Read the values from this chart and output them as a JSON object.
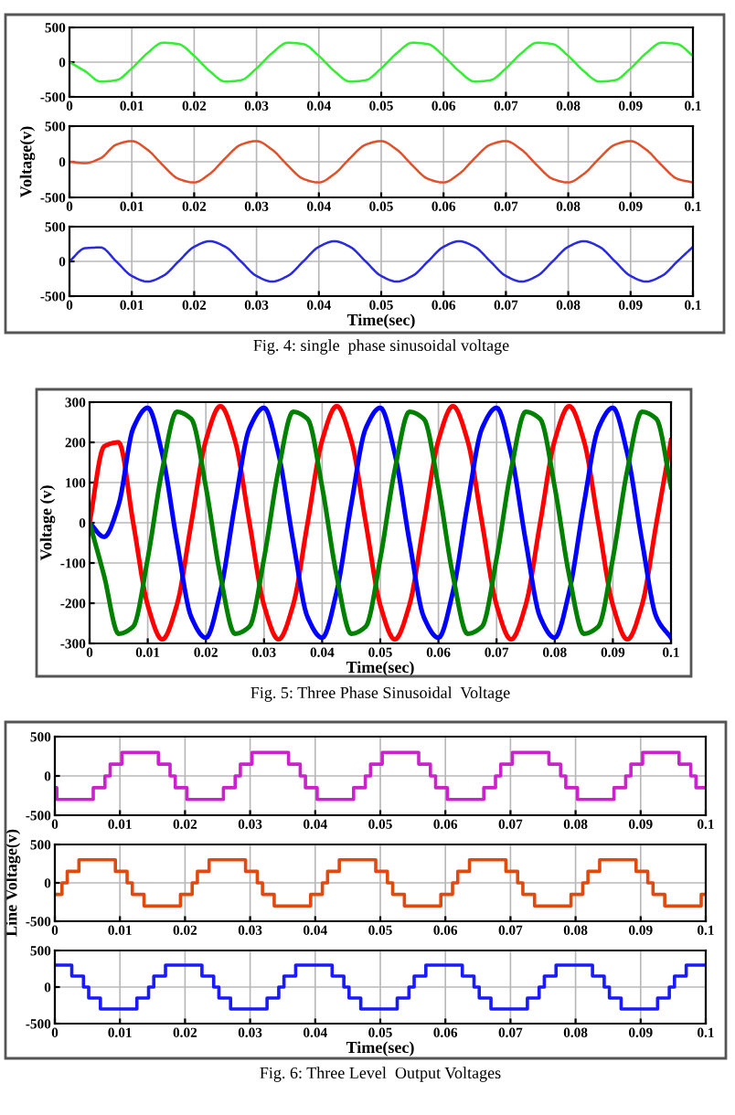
{
  "chart_data": [
    {
      "type": "line",
      "x": [
        0,
        0.0025,
        0.005,
        0.0075,
        0.01,
        0.0125,
        0.015,
        0.0175,
        0.02,
        0.0225,
        0.025,
        0.0275,
        0.03,
        0.0325,
        0.035,
        0.0375,
        0.04,
        0.0425,
        0.045,
        0.0475,
        0.05,
        0.0525,
        0.055,
        0.0575,
        0.06,
        0.0625,
        0.065,
        0.0675,
        0.07,
        0.0725,
        0.075,
        0.0775,
        0.08,
        0.0825,
        0.085,
        0.0875,
        0.09,
        0.0925,
        0.095,
        0.0975,
        0.1
      ],
      "series": [
        {
          "color": "#33ee33",
          "values": [
            0,
            -130,
            -280,
            -260,
            -90,
            130,
            280,
            260,
            90,
            -130,
            -280,
            -260,
            -90,
            130,
            280,
            260,
            90,
            -130,
            -280,
            -260,
            -90,
            130,
            280,
            260,
            90,
            -130,
            -280,
            -260,
            -90,
            130,
            280,
            260,
            90,
            -130,
            -280,
            -260,
            -90,
            130,
            280,
            260,
            90
          ]
        }
      ],
      "xlim": [
        0,
        0.1
      ],
      "ylim": [
        -500,
        500
      ],
      "xticks": [
        0,
        0.01,
        0.02,
        0.03,
        0.04,
        0.05,
        0.06,
        0.07,
        0.08,
        0.09,
        0.1
      ],
      "yticks": [
        -500,
        0,
        500
      ],
      "grid": true
    },
    {
      "type": "line",
      "x": [
        0,
        0.0025,
        0.005,
        0.0075,
        0.01,
        0.0125,
        0.015,
        0.0175,
        0.02,
        0.0225,
        0.025,
        0.0275,
        0.03,
        0.0325,
        0.035,
        0.0375,
        0.04,
        0.0425,
        0.045,
        0.0475,
        0.05,
        0.0525,
        0.055,
        0.0575,
        0.06,
        0.0625,
        0.065,
        0.0675,
        0.07,
        0.0725,
        0.075,
        0.0775,
        0.08,
        0.0825,
        0.085,
        0.0875,
        0.09,
        0.0925,
        0.095,
        0.0975,
        0.1
      ],
      "series": [
        {
          "color": "#e0502a",
          "values": [
            0,
            -20,
            50,
            240,
            290,
            170,
            -50,
            -240,
            -290,
            -170,
            50,
            240,
            290,
            170,
            -50,
            -240,
            -290,
            -170,
            50,
            240,
            290,
            170,
            -50,
            -240,
            -290,
            -170,
            50,
            240,
            290,
            170,
            -50,
            -240,
            -290,
            -170,
            50,
            240,
            290,
            170,
            -50,
            -240,
            -290
          ]
        }
      ],
      "xlim": [
        0,
        0.1
      ],
      "ylim": [
        -500,
        500
      ],
      "xticks": [
        0,
        0.01,
        0.02,
        0.03,
        0.04,
        0.05,
        0.06,
        0.07,
        0.08,
        0.09,
        0.1
      ],
      "yticks": [
        -500,
        0,
        500
      ],
      "grid": true,
      "ylabel": "Voltage(v)"
    },
    {
      "type": "line",
      "x": [
        0,
        0.0025,
        0.005,
        0.0075,
        0.01,
        0.0125,
        0.015,
        0.0175,
        0.02,
        0.0225,
        0.025,
        0.0275,
        0.03,
        0.0325,
        0.035,
        0.0375,
        0.04,
        0.0425,
        0.045,
        0.0475,
        0.05,
        0.0525,
        0.055,
        0.0575,
        0.06,
        0.0625,
        0.065,
        0.0675,
        0.07,
        0.0725,
        0.075,
        0.0775,
        0.08,
        0.0825,
        0.085,
        0.0875,
        0.09,
        0.0925,
        0.095,
        0.0975,
        0.1
      ],
      "series": [
        {
          "color": "#2a2ae0",
          "values": [
            0,
            190,
            200,
            0,
            -210,
            -290,
            -210,
            0,
            210,
            290,
            210,
            0,
            -210,
            -290,
            -210,
            0,
            210,
            290,
            210,
            0,
            -210,
            -290,
            -210,
            0,
            210,
            290,
            210,
            0,
            -210,
            -290,
            -210,
            0,
            210,
            290,
            210,
            0,
            -210,
            -290,
            -210,
            0,
            210
          ]
        }
      ],
      "xlim": [
        0,
        0.1
      ],
      "ylim": [
        -500,
        500
      ],
      "xticks": [
        0,
        0.01,
        0.02,
        0.03,
        0.04,
        0.05,
        0.06,
        0.07,
        0.08,
        0.09,
        0.1
      ],
      "yticks": [
        -500,
        0,
        500
      ],
      "grid": true,
      "xlabel": "Time(sec)",
      "annotations": [
        "Fig. 4: single  phase sinusoidal voltage"
      ]
    },
    {
      "type": "line",
      "x": [
        0,
        0.0025,
        0.005,
        0.0075,
        0.01,
        0.0125,
        0.015,
        0.0175,
        0.02,
        0.0225,
        0.025,
        0.0275,
        0.03,
        0.0325,
        0.035,
        0.0375,
        0.04,
        0.0425,
        0.045,
        0.0475,
        0.05,
        0.0525,
        0.055,
        0.0575,
        0.06,
        0.0625,
        0.065,
        0.0675,
        0.07,
        0.0725,
        0.075,
        0.0775,
        0.08,
        0.0825,
        0.085,
        0.0875,
        0.09,
        0.0925,
        0.095,
        0.0975,
        0.1
      ],
      "series": [
        {
          "color": "#ff0000",
          "values": [
            0,
            190,
            200,
            0,
            -205,
            -290,
            -205,
            0,
            205,
            290,
            205,
            0,
            -205,
            -290,
            -205,
            0,
            205,
            290,
            205,
            0,
            -205,
            -290,
            -205,
            0,
            205,
            290,
            205,
            0,
            -205,
            -290,
            -205,
            0,
            205,
            290,
            205,
            0,
            -205,
            -290,
            -205,
            0,
            205
          ]
        },
        {
          "color": "#0000ff",
          "values": [
            0,
            -35,
            45,
            235,
            286,
            171,
            -45,
            -235,
            -286,
            -171,
            45,
            235,
            286,
            171,
            -45,
            -235,
            -286,
            -171,
            45,
            235,
            286,
            171,
            -45,
            -235,
            -286,
            -171,
            45,
            235,
            286,
            171,
            -45,
            -235,
            -286,
            -171,
            45,
            235,
            286,
            171,
            -45,
            -235,
            -286
          ]
        },
        {
          "color": "#008000",
          "values": [
            0,
            -132,
            -276,
            -258,
            -89,
            132,
            276,
            258,
            89,
            -132,
            -276,
            -258,
            -89,
            132,
            276,
            258,
            89,
            -132,
            -276,
            -258,
            -89,
            132,
            276,
            258,
            89,
            -132,
            -276,
            -258,
            -89,
            132,
            276,
            258,
            89,
            -132,
            -276,
            -258,
            -89,
            132,
            276,
            258,
            89
          ]
        }
      ],
      "xlim": [
        0,
        0.1
      ],
      "ylim": [
        -300,
        300
      ],
      "xticks": [
        0,
        0.01,
        0.02,
        0.03,
        0.04,
        0.05,
        0.06,
        0.07,
        0.08,
        0.09,
        0.1
      ],
      "yticks": [
        -300,
        -200,
        -100,
        0,
        100,
        200,
        300
      ],
      "grid": true,
      "xlabel": "Time(sec)",
      "ylabel": "Voltage (v)",
      "annotations": [
        "Fig. 5: Three Phase Sinusoidal  Voltage"
      ]
    },
    {
      "type": "step",
      "x": [
        0,
        0.0003,
        0.0059,
        0.0077,
        0.0085,
        0.0103,
        0.0159,
        0.0177,
        0.0185,
        0.0203,
        0.0259,
        0.0277,
        0.0285,
        0.0303,
        0.0359,
        0.0377,
        0.0385,
        0.0403,
        0.0459,
        0.0477,
        0.0485,
        0.0503,
        0.0559,
        0.0577,
        0.0585,
        0.0603,
        0.0659,
        0.0677,
        0.0685,
        0.0703,
        0.0759,
        0.0777,
        0.0785,
        0.0803,
        0.0859,
        0.0877,
        0.0885,
        0.0903,
        0.0959,
        0.0977,
        0.0985,
        0.1
      ],
      "series": [
        {
          "color": "#cc22cc",
          "values": [
            -150,
            -300,
            -150,
            0,
            150,
            300,
            150,
            0,
            -150,
            -300,
            -150,
            0,
            150,
            300,
            150,
            0,
            -150,
            -300,
            -150,
            0,
            150,
            300,
            150,
            0,
            -150,
            -300,
            -150,
            0,
            150,
            300,
            150,
            0,
            -150,
            -300,
            -150,
            0,
            150,
            300,
            150,
            0,
            -150,
            -150
          ]
        }
      ],
      "xlim": [
        0,
        0.1
      ],
      "ylim": [
        -500,
        500
      ],
      "xticks": [
        0,
        0.01,
        0.02,
        0.03,
        0.04,
        0.05,
        0.06,
        0.07,
        0.08,
        0.09,
        0.1
      ],
      "yticks": [
        -500,
        0,
        500
      ],
      "grid": true
    },
    {
      "type": "step",
      "x": [
        0,
        0.0011,
        0.0019,
        0.0037,
        0.0093,
        0.0111,
        0.0119,
        0.0137,
        0.0193,
        0.0211,
        0.0219,
        0.0237,
        0.0293,
        0.0311,
        0.0319,
        0.0337,
        0.0393,
        0.0411,
        0.0419,
        0.0437,
        0.0493,
        0.0511,
        0.0519,
        0.0537,
        0.0593,
        0.0611,
        0.0619,
        0.0637,
        0.0693,
        0.0711,
        0.0719,
        0.0737,
        0.0793,
        0.0811,
        0.0819,
        0.0837,
        0.0893,
        0.0911,
        0.0919,
        0.0937,
        0.0993,
        0.1
      ],
      "series": [
        {
          "color": "#e04a10",
          "values": [
            -150,
            0,
            150,
            300,
            150,
            0,
            -150,
            -300,
            -150,
            0,
            150,
            300,
            150,
            0,
            -150,
            -300,
            -150,
            0,
            150,
            300,
            150,
            0,
            -150,
            -300,
            -150,
            0,
            150,
            300,
            150,
            0,
            -150,
            -300,
            -150,
            0,
            150,
            300,
            150,
            0,
            -150,
            -300,
            -150,
            -150
          ]
        }
      ],
      "xlim": [
        0,
        0.1
      ],
      "ylim": [
        -500,
        500
      ],
      "xticks": [
        0,
        0.01,
        0.02,
        0.03,
        0.04,
        0.05,
        0.06,
        0.07,
        0.08,
        0.09,
        0.1
      ],
      "yticks": [
        -500,
        0,
        500
      ],
      "grid": true,
      "ylabel": "Line Voltage(v)"
    },
    {
      "type": "step",
      "x": [
        0,
        0.0026,
        0.0044,
        0.0052,
        0.007,
        0.0126,
        0.0144,
        0.0152,
        0.017,
        0.0226,
        0.0244,
        0.0252,
        0.027,
        0.0326,
        0.0344,
        0.0352,
        0.037,
        0.0426,
        0.0444,
        0.0452,
        0.047,
        0.0526,
        0.0544,
        0.0552,
        0.057,
        0.0626,
        0.0644,
        0.0652,
        0.067,
        0.0726,
        0.0744,
        0.0752,
        0.077,
        0.0826,
        0.0844,
        0.0852,
        0.087,
        0.0926,
        0.0944,
        0.0952,
        0.097,
        0.1
      ],
      "series": [
        {
          "color": "#1a1aff",
          "values": [
            300,
            150,
            0,
            -150,
            -300,
            -150,
            0,
            150,
            300,
            150,
            0,
            -150,
            -300,
            -150,
            0,
            150,
            300,
            150,
            0,
            -150,
            -300,
            -150,
            0,
            150,
            300,
            150,
            0,
            -150,
            -300,
            -150,
            0,
            150,
            300,
            150,
            0,
            -150,
            -300,
            -150,
            0,
            150,
            300,
            300
          ]
        }
      ],
      "xlim": [
        0,
        0.1
      ],
      "ylim": [
        -500,
        500
      ],
      "xticks": [
        0,
        0.01,
        0.02,
        0.03,
        0.04,
        0.05,
        0.06,
        0.07,
        0.08,
        0.09,
        0.1
      ],
      "yticks": [
        -500,
        0,
        500
      ],
      "grid": true,
      "xlabel": "Time(sec)",
      "annotations": [
        "Fig. 6: Three Level  Output Voltages"
      ]
    }
  ]
}
